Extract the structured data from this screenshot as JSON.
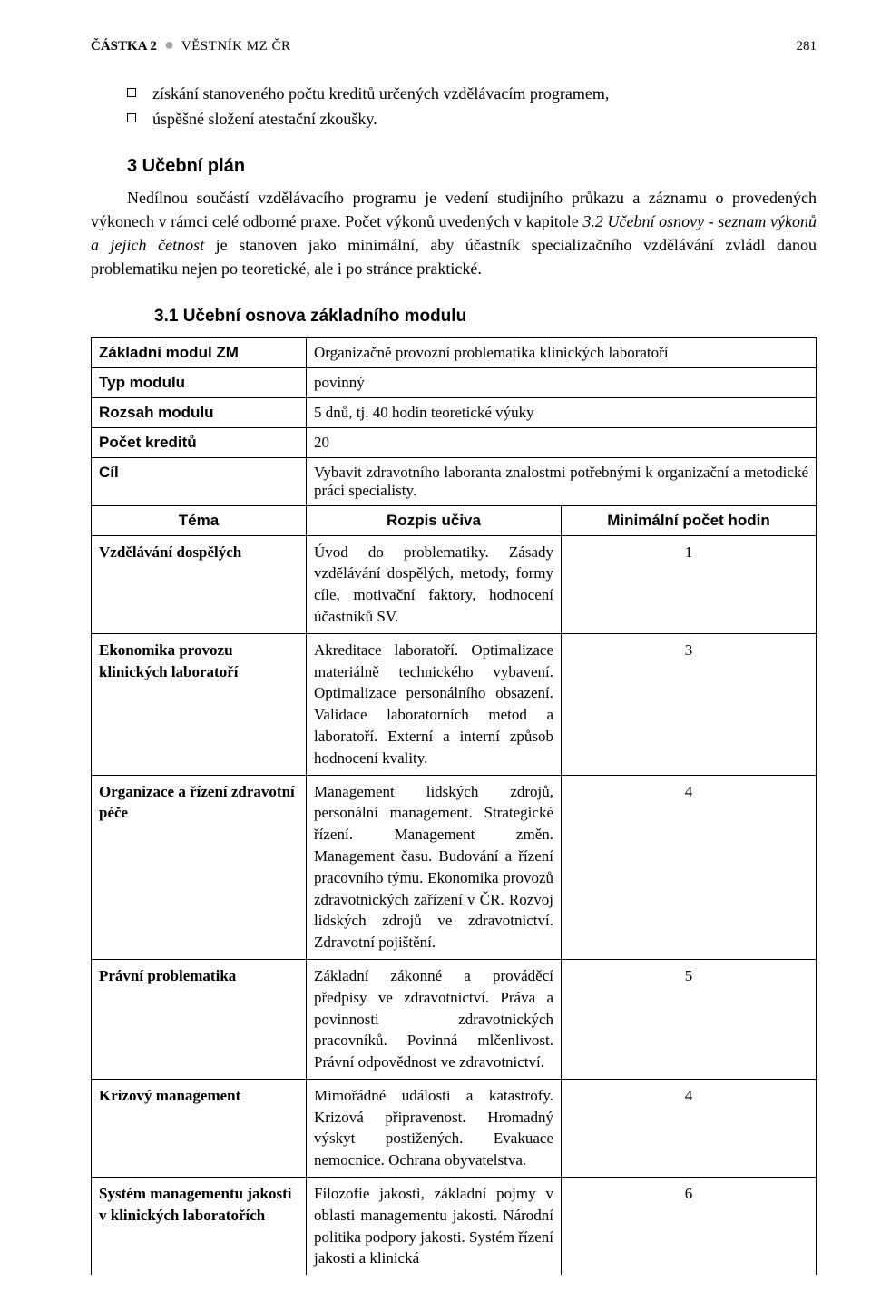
{
  "header": {
    "castka_label": "ČÁSTKA 2",
    "center": "VĚSTNÍK MZ ČR",
    "page_number": "281"
  },
  "bullets": [
    "získání stanoveného počtu kreditů určených vzdělávacím programem,",
    "úspěšné složení atestační zkoušky."
  ],
  "section3": {
    "heading": "3   Učební plán",
    "text_prefix": "Nedílnou součástí vzdělávacího programu je vedení studijního průkazu a záznamu o provedených výkonech v rámci celé odborné praxe. Počet výkonů uvedených v kapitole ",
    "italic": "3.2 Učební osnovy - seznam výkonů a jejich četnost",
    "text_suffix": " je stanoven jako minimální, aby účastník specializačního vzdělávání zvládl danou problematiku nejen po teoretické, ale i po stránce praktické."
  },
  "section31": {
    "heading": "3.1  Učební osnova základního modulu"
  },
  "table_header": {
    "rows": [
      {
        "label": "Základní modul ZM",
        "value": "Organizačně provozní problematika klinických laboratoří"
      },
      {
        "label": "Typ modulu",
        "value": "povinný"
      },
      {
        "label": "Rozsah modulu",
        "value": "5 dnů, tj. 40 hodin teoretické výuky"
      },
      {
        "label": "Počet kreditů",
        "value": "20"
      },
      {
        "label": "Cíl",
        "value": "Vybavit zdravotního laboranta znalostmi potřebnými k organizační a metodické práci specialisty."
      }
    ],
    "col_tema": "Téma",
    "col_rozpis": "Rozpis učiva",
    "col_hours": "Minimální počet hodin"
  },
  "topics": [
    {
      "topic": "Vzdělávání dospělých",
      "text": "Úvod do problematiky. Zásady vzdělávání dospělých, metody, formy cíle, motivační faktory, hodnocení účastníků SV.",
      "hours": "1"
    },
    {
      "topic": "Ekonomika provozu klinických laboratoří",
      "text": "Akreditace laboratoří. Optimalizace materiálně technického vybavení. Optimalizace personálního obsazení. Validace laboratorních metod a laboratoří. Externí a interní způsob hodnocení kvality.",
      "hours": "3"
    },
    {
      "topic": "Organizace a řízení zdravotní péče",
      "text": "Management lidských zdrojů, personální management. Strategické řízení. Management změn. Management času. Budování a řízení pracovního týmu. Ekonomika provozů zdravotnických zařízení v ČR. Rozvoj lidských zdrojů ve zdravotnictví. Zdravotní pojištění.",
      "hours": "4"
    },
    {
      "topic": "Právní problematika",
      "text": "Základní zákonné a prováděcí předpisy ve zdravotnictví. Práva a povinnosti zdravotnických pracovníků. Povinná mlčenlivost. Právní odpovědnost ve zdravotnictví.",
      "hours": "5"
    },
    {
      "topic": "Krizový management",
      "text": "Mimořádné události a katastrofy. Krizová připravenost. Hromadný výskyt postižených. Evakuace nemocnice. Ochrana obyvatelstva.",
      "hours": "4"
    },
    {
      "topic": "Systém managementu jakosti v klinických laboratořích",
      "text": "Filozofie jakosti, základní pojmy v oblasti managementu jakosti. Národní politika podpory jakosti. Systém řízení jakosti a klinická",
      "hours": "6"
    }
  ]
}
